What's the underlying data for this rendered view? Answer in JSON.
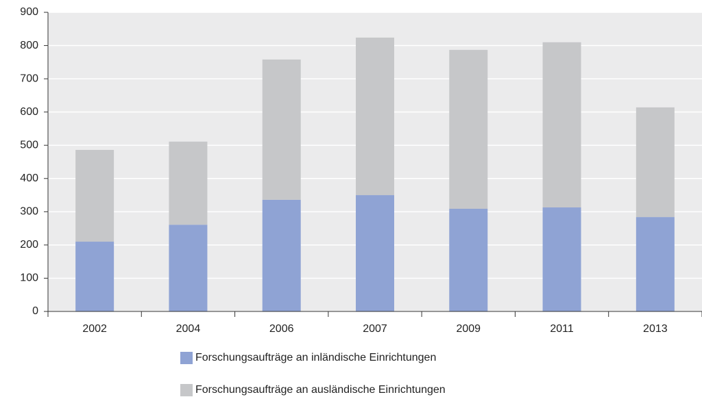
{
  "chart_data": {
    "type": "bar",
    "stacked": true,
    "categories": [
      "2002",
      "2004",
      "2006",
      "2007",
      "2009",
      "2011",
      "2013"
    ],
    "series": [
      {
        "name": "Forschungsaufträge an inländische Einrichtungen",
        "color": "#8fa3d4",
        "values": [
          210,
          261,
          336,
          350,
          309,
          313,
          284
        ]
      },
      {
        "name": "Forschungsaufträge an ausländische Einrichtungen",
        "color": "#c6c7c9",
        "values": [
          276,
          250,
          422,
          474,
          478,
          497,
          330
        ]
      }
    ],
    "ylim": [
      0,
      900
    ],
    "yticks": [
      0,
      100,
      200,
      300,
      400,
      500,
      600,
      700,
      800,
      900
    ],
    "grid": true,
    "legend": "bottom"
  }
}
